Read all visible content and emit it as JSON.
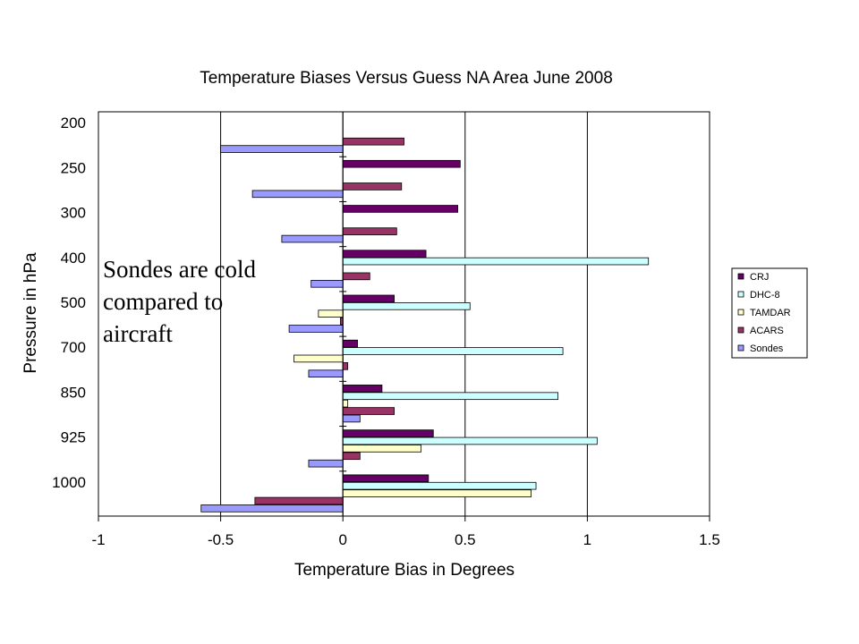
{
  "chart_data": {
    "type": "bar",
    "orientation": "horizontal",
    "title": "Temperature Biases Versus Guess NA Area June 2008",
    "xlabel": "Temperature Bias in Degrees",
    "ylabel": "Pressure in hPa",
    "xlim": [
      -1,
      1.5
    ],
    "x_ticks": [
      "-1",
      "-0.5",
      "0",
      "0.5",
      "1",
      "1.5"
    ],
    "x_tick_values": [
      -1,
      -0.5,
      0,
      0.5,
      1,
      1.5
    ],
    "categories": [
      "200",
      "250",
      "300",
      "400",
      "500",
      "700",
      "850",
      "925",
      "1000"
    ],
    "grid": "vertical major gridlines",
    "legend_position": "right",
    "series": [
      {
        "name": "CRJ",
        "color": "#660066",
        "values": [
          null,
          0.48,
          0.47,
          0.34,
          0.21,
          0.06,
          0.16,
          0.37,
          0.35
        ]
      },
      {
        "name": "DHC-8",
        "color": "#ccffff",
        "values": [
          null,
          null,
          null,
          1.25,
          0.52,
          0.9,
          0.88,
          1.04,
          0.79
        ]
      },
      {
        "name": "TAMDAR",
        "color": "#ffffcc",
        "values": [
          null,
          null,
          null,
          null,
          -0.1,
          -0.2,
          0.02,
          0.32,
          0.77
        ]
      },
      {
        "name": "ACARS",
        "color": "#993366",
        "values": [
          0.25,
          0.24,
          0.22,
          0.11,
          -0.01,
          0.02,
          0.21,
          0.07,
          -0.36
        ]
      },
      {
        "name": "Sondes",
        "color": "#9999ff",
        "values": [
          -0.5,
          -0.37,
          -0.25,
          -0.13,
          -0.22,
          -0.14,
          0.07,
          -0.14,
          -0.58
        ]
      }
    ]
  },
  "annotation": {
    "line1": "Sondes are cold",
    "line2": "compared to",
    "line3": "aircraft"
  }
}
